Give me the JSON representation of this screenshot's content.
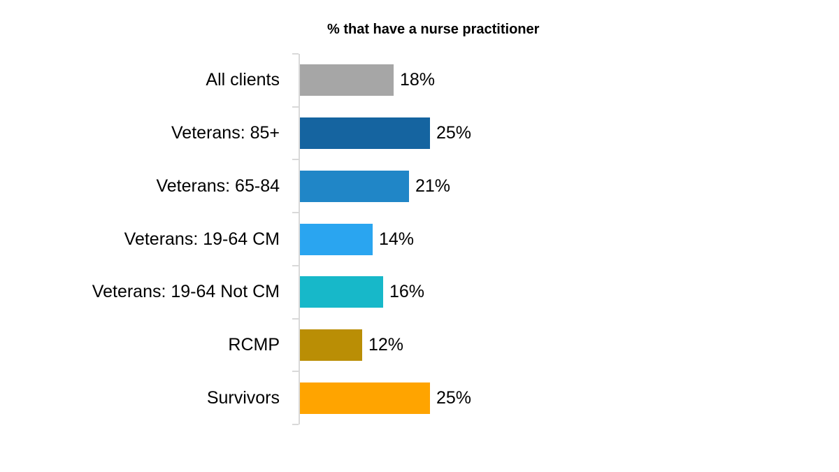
{
  "chart_data": {
    "type": "bar",
    "orientation": "horizontal",
    "title": "% that have a nurse practitioner",
    "categories": [
      "All clients",
      "Veterans: 85+",
      "Veterans: 65-84",
      "Veterans: 19-64 CM",
      "Veterans: 19-64 Not CM",
      "RCMP",
      "Survivors"
    ],
    "values": [
      18,
      25,
      21,
      14,
      16,
      12,
      25
    ],
    "value_labels": [
      "18%",
      "25%",
      "21%",
      "14%",
      "16%",
      "12%",
      "25%"
    ],
    "bar_colors": [
      "#a6a6a6",
      "#1564a0",
      "#2086c7",
      "#2aa5f0",
      "#17b8c9",
      "#ba8e05",
      "#ffa400"
    ],
    "xlabel": "",
    "ylabel": "",
    "axis_color": "#d9d9d9",
    "text_color": "#000000",
    "background_color": "#ffffff",
    "grid": false,
    "legend": false,
    "value_axis_labels_visible": false
  }
}
